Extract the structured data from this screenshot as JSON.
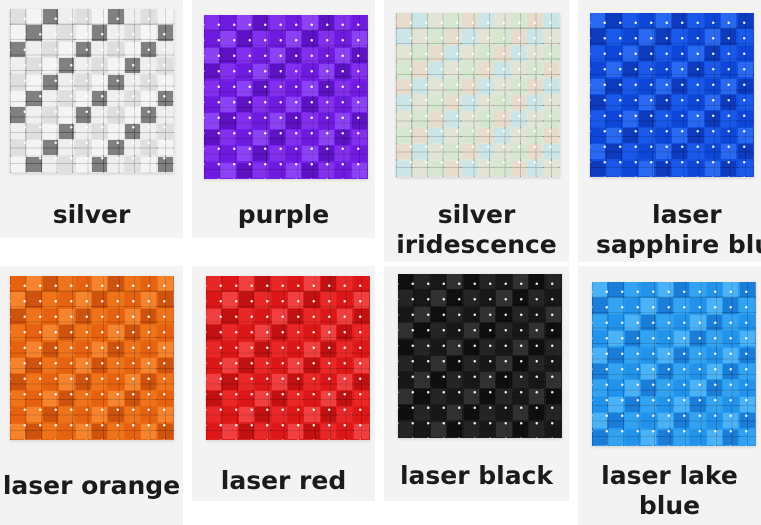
{
  "swatches": [
    {
      "label_lines": [
        "silver"
      ],
      "colors": [
        "#d9d9d9",
        "#f5f5f5",
        "#2b2b2b",
        "#ffffff"
      ]
    },
    {
      "label_lines": [
        "purple"
      ],
      "colors": [
        "#6b16d8",
        "#8f3cf2",
        "#4b0aa6",
        "#a35cff"
      ]
    },
    {
      "label_lines": [
        "silver",
        "iridescence"
      ],
      "colors": [
        "#e8e4d2",
        "#bfe6f2",
        "#f3d3c0",
        "#cfe8c4"
      ]
    },
    {
      "label_lines": [
        "laser",
        "sapphire blue"
      ],
      "colors": [
        "#0a3fd1",
        "#1e5ff0",
        "#0928a0",
        "#3a7bff"
      ]
    },
    {
      "label_lines": [
        "laser orange"
      ],
      "colors": [
        "#e25a0c",
        "#f27a20",
        "#b5400a",
        "#ff9844"
      ]
    },
    {
      "label_lines": [
        "laser red"
      ],
      "colors": [
        "#d81212",
        "#f03030",
        "#a80808",
        "#ff5a5a"
      ]
    },
    {
      "label_lines": [
        "laser black"
      ],
      "colors": [
        "#161616",
        "#2e2e2e",
        "#050505",
        "#444444"
      ]
    },
    {
      "label_lines": [
        "laser lake",
        "blue"
      ],
      "colors": [
        "#1c8be8",
        "#3aa9f2",
        "#0e64c4",
        "#66c4ff"
      ]
    }
  ]
}
